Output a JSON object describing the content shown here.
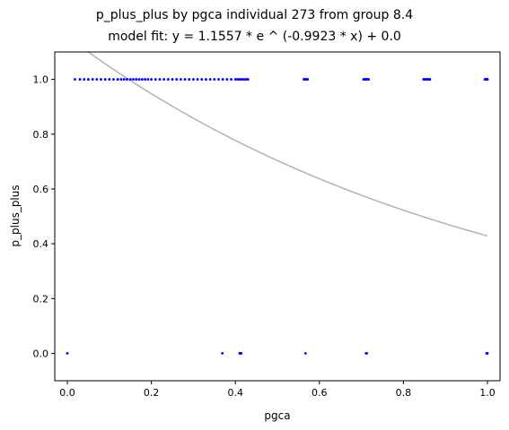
{
  "chart_data": {
    "type": "scatter",
    "title": "p_plus_plus by pgca individual 273 from group 8.4",
    "subtitle": "model fit: y = 1.1557 * e ^ (-0.9923 * x) + 0.0",
    "xlabel": "pgca",
    "ylabel": "p_plus_plus",
    "xlim": [
      -0.03,
      1.03
    ],
    "ylim": [
      -0.1,
      1.1
    ],
    "xticks": [
      0.0,
      0.2,
      0.4,
      0.6,
      0.8,
      1.0
    ],
    "xtick_labels": [
      "0.0",
      "0.2",
      "0.4",
      "0.6",
      "0.8",
      "1.0"
    ],
    "yticks": [
      0.0,
      0.2,
      0.4,
      0.6,
      0.8,
      1.0
    ],
    "ytick_labels": [
      "0.0",
      "0.2",
      "0.4",
      "0.6",
      "0.8",
      "1.0"
    ],
    "grid": false,
    "point_color": "#0000ff",
    "fit_color": "#b2b2b2",
    "fit": {
      "a": 1.1557,
      "b": -0.9923,
      "c": 0.0
    },
    "points": [
      [
        0.0,
        0.0
      ],
      [
        0.369,
        0.0
      ],
      [
        0.41,
        0.0
      ],
      [
        0.412,
        0.0
      ],
      [
        0.414,
        0.0
      ],
      [
        0.567,
        0.0
      ],
      [
        0.711,
        0.0
      ],
      [
        0.713,
        0.0
      ],
      [
        0.998,
        0.0
      ],
      [
        1.0,
        0.0
      ],
      [
        1.0,
        0.0
      ],
      [
        0.018,
        1.0
      ],
      [
        0.03,
        1.0
      ],
      [
        0.04,
        1.0
      ],
      [
        0.05,
        1.0
      ],
      [
        0.06,
        1.0
      ],
      [
        0.07,
        1.0
      ],
      [
        0.08,
        1.0
      ],
      [
        0.09,
        1.0
      ],
      [
        0.1,
        1.0
      ],
      [
        0.11,
        1.0
      ],
      [
        0.12,
        1.0
      ],
      [
        0.128,
        1.0
      ],
      [
        0.135,
        1.0
      ],
      [
        0.142,
        1.0
      ],
      [
        0.15,
        1.0
      ],
      [
        0.157,
        1.0
      ],
      [
        0.164,
        1.0
      ],
      [
        0.171,
        1.0
      ],
      [
        0.178,
        1.0
      ],
      [
        0.185,
        1.0
      ],
      [
        0.192,
        1.0
      ],
      [
        0.2,
        1.0
      ],
      [
        0.21,
        1.0
      ],
      [
        0.22,
        1.0
      ],
      [
        0.23,
        1.0
      ],
      [
        0.24,
        1.0
      ],
      [
        0.25,
        1.0
      ],
      [
        0.26,
        1.0
      ],
      [
        0.27,
        1.0
      ],
      [
        0.28,
        1.0
      ],
      [
        0.29,
        1.0
      ],
      [
        0.3,
        1.0
      ],
      [
        0.31,
        1.0
      ],
      [
        0.32,
        1.0
      ],
      [
        0.33,
        1.0
      ],
      [
        0.34,
        1.0
      ],
      [
        0.35,
        1.0
      ],
      [
        0.36,
        1.0
      ],
      [
        0.37,
        1.0
      ],
      [
        0.38,
        1.0
      ],
      [
        0.39,
        1.0
      ],
      [
        0.4,
        1.0
      ],
      [
        0.405,
        1.0
      ],
      [
        0.41,
        1.0
      ],
      [
        0.415,
        1.0
      ],
      [
        0.42,
        1.0
      ],
      [
        0.425,
        1.0
      ],
      [
        0.43,
        1.0
      ],
      [
        0.563,
        1.0
      ],
      [
        0.566,
        1.0
      ],
      [
        0.569,
        1.0
      ],
      [
        0.572,
        1.0
      ],
      [
        0.705,
        1.0
      ],
      [
        0.708,
        1.0
      ],
      [
        0.711,
        1.0
      ],
      [
        0.714,
        1.0
      ],
      [
        0.717,
        1.0
      ],
      [
        0.848,
        1.0
      ],
      [
        0.851,
        1.0
      ],
      [
        0.854,
        1.0
      ],
      [
        0.857,
        1.0
      ],
      [
        0.86,
        1.0
      ],
      [
        0.863,
        1.0
      ],
      [
        0.994,
        1.0
      ],
      [
        0.996,
        1.0
      ],
      [
        0.998,
        1.0
      ],
      [
        1.0,
        1.0
      ],
      [
        1.0,
        1.0
      ]
    ]
  }
}
